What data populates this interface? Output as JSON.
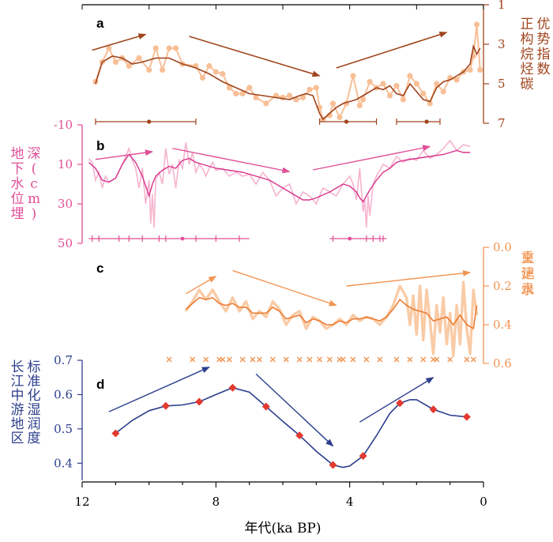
{
  "figure": {
    "xlabel": "年代(ka BP)",
    "x_ticks": [
      12,
      8,
      4,
      0
    ],
    "x_tick_labels": [
      "12",
      "8",
      "4",
      "0"
    ],
    "x_range": [
      12,
      0
    ]
  },
  "chart_data": [
    {
      "panel": "a",
      "type": "line",
      "ylabel": "正构烷烃碳优势指数",
      "ylim": [
        1,
        7
      ],
      "y_inverted": true,
      "y_axis_side": "right",
      "y_ticks": [
        1,
        3,
        5,
        7
      ],
      "color_raw": "#f8bf96",
      "color_smooth": "#a0441c",
      "series": [
        {
          "role": "raw",
          "x": [
            11.6,
            11.4,
            11.2,
            11.0,
            10.8,
            10.6,
            10.3,
            10.0,
            9.8,
            9.6,
            9.4,
            9.2,
            9.0,
            8.6,
            8.4,
            8.2,
            8.0,
            7.8,
            7.6,
            7.4,
            7.2,
            7.0,
            6.8,
            6.5,
            6.2,
            6.0,
            5.8,
            5.6,
            5.4,
            5.2,
            5.0,
            4.9,
            4.8,
            4.6,
            4.5,
            4.3,
            4.1,
            3.9,
            3.7,
            3.6,
            3.4,
            3.2,
            3.0,
            2.8,
            2.6,
            2.4,
            2.2,
            2.0,
            1.8,
            1.6,
            1.4,
            1.2,
            1.0,
            0.8,
            0.6,
            0.4,
            0.3,
            0.2,
            0.1
          ],
          "y": [
            4.9,
            3.9,
            3.2,
            3.9,
            3.7,
            4.1,
            3.7,
            4.3,
            3.2,
            4.3,
            3.2,
            3.2,
            4.0,
            4.1,
            4.7,
            4.1,
            4.4,
            4.5,
            5.2,
            5.5,
            5.5,
            5.2,
            5.7,
            6.0,
            5.6,
            5.7,
            5.6,
            5.8,
            5.7,
            5.3,
            5.2,
            6.2,
            6.8,
            6.6,
            6.0,
            6.7,
            6.0,
            4.6,
            6.1,
            5.8,
            4.9,
            5.2,
            5.0,
            5.6,
            5.1,
            5.8,
            4.6,
            5.0,
            5.5,
            6.0,
            5.0,
            5.4,
            4.7,
            4.8,
            4.4,
            4.3,
            3.6,
            2.0,
            4.3
          ]
        },
        {
          "role": "smoothed",
          "x": [
            11.6,
            11.4,
            11.1,
            10.8,
            10.5,
            10.2,
            9.8,
            9.4,
            9.0,
            8.6,
            8.2,
            7.8,
            7.4,
            7.0,
            6.6,
            6.2,
            5.8,
            5.5,
            5.3,
            5.1,
            4.9,
            4.8,
            4.6,
            4.4,
            4.2,
            4.0,
            3.8,
            3.6,
            3.4,
            3.2,
            3.0,
            2.8,
            2.6,
            2.4,
            2.2,
            2.0,
            1.8,
            1.6,
            1.4,
            1.2,
            1.0,
            0.8,
            0.6,
            0.4,
            0.3,
            0.2,
            0.1
          ],
          "y": [
            5.0,
            3.9,
            3.6,
            3.7,
            4.0,
            3.9,
            3.7,
            3.7,
            4.0,
            4.2,
            4.5,
            4.9,
            5.2,
            5.5,
            5.6,
            5.7,
            5.8,
            5.6,
            5.5,
            5.6,
            6.5,
            6.8,
            6.5,
            6.2,
            6.0,
            5.9,
            5.8,
            5.6,
            5.4,
            5.2,
            5.3,
            5.1,
            5.5,
            5.6,
            5.0,
            5.4,
            5.8,
            5.9,
            5.2,
            4.9,
            4.8,
            4.6,
            4.4,
            4.0,
            3.1,
            3.5,
            3.2
          ]
        }
      ],
      "trend_arrows": [
        {
          "from": [
            11.7,
            3.3
          ],
          "to": [
            10.1,
            2.5
          ]
        },
        {
          "from": [
            8.8,
            2.6
          ],
          "to": [
            4.9,
            4.6
          ]
        },
        {
          "from": [
            4.4,
            4.2
          ],
          "to": [
            1.1,
            2.4
          ]
        }
      ],
      "age_ranges": [
        {
          "start": 11.6,
          "end": 8.6,
          "mark": 10.0
        },
        {
          "start": 4.9,
          "end": 3.2,
          "mark": 4.1
        },
        {
          "start": 2.6,
          "end": 1.3,
          "mark": 1.7
        }
      ]
    },
    {
      "panel": "b",
      "type": "line",
      "ylabel": "地下水位埋深(cm)",
      "ylim": [
        -10,
        50
      ],
      "y_axis_side": "left",
      "y_ticks": [
        -10,
        10,
        30,
        50
      ],
      "color_raw": "#f6b3ce",
      "color_smooth": "#d6338a",
      "series": [
        {
          "role": "raw",
          "x": [
            11.8,
            11.7,
            11.6,
            11.5,
            11.4,
            11.3,
            11.2,
            11.0,
            10.8,
            10.6,
            10.5,
            10.4,
            10.3,
            10.2,
            10.1,
            10.0,
            9.95,
            9.9,
            9.85,
            9.8,
            9.7,
            9.6,
            9.5,
            9.4,
            9.3,
            9.2,
            9.1,
            9.0,
            8.9,
            8.8,
            8.7,
            8.6,
            8.5,
            8.4,
            8.3,
            8.2,
            8.1,
            8.0,
            7.8,
            7.6,
            7.4,
            7.2,
            7.0,
            6.8,
            6.6,
            6.4,
            6.2,
            6.0,
            5.8,
            5.6,
            5.4,
            5.2,
            5.0,
            4.8,
            4.6,
            4.4,
            4.2,
            4.0,
            3.9,
            3.8,
            3.7,
            3.6,
            3.55,
            3.5,
            3.45,
            3.4,
            3.3,
            3.2,
            3.0,
            2.8,
            2.6,
            2.4,
            2.2,
            2.0,
            1.8,
            1.6,
            1.4,
            1.2,
            1.0,
            0.8,
            0.6,
            0.4
          ],
          "y": [
            7,
            9,
            18,
            14,
            22,
            16,
            19,
            17,
            10,
            2,
            8,
            12,
            22,
            12,
            30,
            18,
            40,
            25,
            42,
            18,
            14,
            20,
            2,
            15,
            10,
            22,
            8,
            12,
            -1,
            10,
            4,
            14,
            10,
            12,
            16,
            12,
            9,
            13,
            12,
            16,
            14,
            16,
            15,
            20,
            14,
            18,
            26,
            22,
            20,
            30,
            24,
            26,
            30,
            22,
            24,
            26,
            20,
            16,
            20,
            28,
            12,
            34,
            28,
            42,
            26,
            36,
            20,
            16,
            10,
            12,
            6,
            9,
            7,
            8,
            3,
            7,
            5,
            2,
            -2,
            3,
            0,
            1
          ]
        },
        {
          "role": "smoothed",
          "x": [
            11.8,
            11.6,
            11.4,
            11.2,
            11.0,
            10.8,
            10.6,
            10.5,
            10.4,
            10.2,
            10.0,
            9.9,
            9.8,
            9.6,
            9.4,
            9.2,
            9.0,
            8.8,
            8.6,
            8.4,
            8.2,
            8.0,
            7.6,
            7.2,
            6.8,
            6.4,
            6.0,
            5.6,
            5.4,
            5.2,
            5.0,
            4.6,
            4.2,
            4.0,
            3.8,
            3.7,
            3.6,
            3.5,
            3.4,
            3.2,
            3.0,
            2.8,
            2.6,
            2.4,
            2.0,
            1.6,
            1.2,
            0.8,
            0.6,
            0.4
          ],
          "y": [
            9,
            12,
            18,
            19,
            17,
            10,
            5,
            7,
            9,
            16,
            26,
            20,
            16,
            13,
            11,
            12,
            8,
            7,
            9,
            10,
            11,
            12,
            13,
            14,
            16,
            18,
            22,
            26,
            28,
            28,
            27,
            24,
            20,
            21,
            24,
            27,
            29,
            26,
            23,
            18,
            14,
            12,
            9,
            8,
            7,
            6,
            5,
            3,
            4,
            4
          ]
        }
      ],
      "trend_arrows": [
        {
          "from": [
            11.6,
            7.5
          ],
          "to": [
            9.9,
            3.6
          ]
        },
        {
          "from": [
            9.3,
            1.9
          ],
          "to": [
            5.8,
            13.7
          ]
        },
        {
          "from": [
            5.1,
            12.8
          ],
          "to": [
            1.6,
            1.0
          ]
        }
      ],
      "age_ranges": [
        {
          "start": 11.8,
          "end": 7.0,
          "mark": 9.0,
          "ticks": [
            11.7,
            11.5,
            10.9,
            10.6,
            10.2,
            9.7,
            9.5,
            8.6,
            8.0,
            7.3
          ]
        },
        {
          "start": 4.6,
          "end": 2.9,
          "mark": 4.0,
          "ticks": [
            4.5,
            3.5,
            3.3,
            3.1,
            3.0
          ]
        }
      ]
    },
    {
      "panel": "c",
      "type": "line",
      "ylabel": "重建水文记录",
      "ylim": [
        0.0,
        0.6
      ],
      "y_axis_side": "right",
      "y_ticks": [
        0.0,
        0.2,
        0.4,
        0.6
      ],
      "color_raw": "#f9cba6",
      "color_smooth": "#eb7d35",
      "series": [
        {
          "role": "raw",
          "x": [
            8.9,
            8.7,
            8.5,
            8.3,
            8.1,
            7.9,
            7.7,
            7.5,
            7.3,
            7.1,
            6.9,
            6.7,
            6.5,
            6.3,
            6.1,
            5.9,
            5.7,
            5.5,
            5.3,
            5.1,
            4.9,
            4.7,
            4.5,
            4.3,
            4.1,
            3.9,
            3.7,
            3.5,
            3.3,
            3.1,
            2.9,
            2.7,
            2.5,
            2.3,
            2.2,
            2.1,
            2.0,
            1.9,
            1.8,
            1.7,
            1.6,
            1.5,
            1.4,
            1.3,
            1.2,
            1.1,
            1.0,
            0.9,
            0.8,
            0.7,
            0.6,
            0.5,
            0.4,
            0.3,
            0.2
          ],
          "y": [
            0.33,
            0.28,
            0.22,
            0.27,
            0.22,
            0.28,
            0.33,
            0.26,
            0.33,
            0.28,
            0.37,
            0.33,
            0.36,
            0.28,
            0.32,
            0.4,
            0.35,
            0.33,
            0.42,
            0.36,
            0.38,
            0.42,
            0.4,
            0.37,
            0.4,
            0.35,
            0.38,
            0.36,
            0.37,
            0.4,
            0.36,
            0.3,
            0.2,
            0.26,
            0.4,
            0.25,
            0.45,
            0.2,
            0.48,
            0.22,
            0.38,
            0.55,
            0.3,
            0.44,
            0.26,
            0.5,
            0.34,
            0.56,
            0.3,
            0.5,
            0.18,
            0.42,
            0.55,
            0.22,
            0.35
          ]
        },
        {
          "role": "smoothed",
          "x": [
            8.9,
            8.7,
            8.5,
            8.3,
            8.1,
            7.9,
            7.7,
            7.5,
            7.3,
            7.1,
            6.9,
            6.7,
            6.5,
            6.3,
            6.1,
            5.9,
            5.7,
            5.5,
            5.3,
            5.1,
            4.9,
            4.7,
            4.5,
            4.3,
            4.1,
            3.9,
            3.7,
            3.5,
            3.3,
            3.1,
            2.9,
            2.7,
            2.5,
            2.3,
            2.1,
            1.9,
            1.7,
            1.5,
            1.3,
            1.1,
            0.9,
            0.7,
            0.5,
            0.3,
            0.2
          ],
          "y": [
            0.32,
            0.29,
            0.26,
            0.27,
            0.26,
            0.29,
            0.3,
            0.29,
            0.31,
            0.31,
            0.34,
            0.34,
            0.34,
            0.31,
            0.33,
            0.37,
            0.36,
            0.35,
            0.39,
            0.37,
            0.38,
            0.4,
            0.4,
            0.38,
            0.39,
            0.37,
            0.37,
            0.36,
            0.37,
            0.38,
            0.36,
            0.32,
            0.27,
            0.3,
            0.32,
            0.33,
            0.34,
            0.38,
            0.37,
            0.36,
            0.4,
            0.35,
            0.4,
            0.42,
            0.3
          ]
        }
      ],
      "trend_arrows": [
        {
          "from": [
            8.9,
            0.24
          ],
          "to": [
            8.0,
            0.15
          ]
        },
        {
          "from": [
            7.5,
            0.12
          ],
          "to": [
            4.4,
            0.3
          ]
        },
        {
          "from": [
            4.1,
            0.2
          ],
          "to": [
            0.4,
            0.13
          ]
        }
      ],
      "age_markers": [
        9.4,
        8.7,
        8.3,
        7.9,
        7.8,
        7.6,
        7.2,
        6.9,
        6.7,
        6.3,
        5.9,
        5.5,
        5.2,
        4.9,
        4.6,
        4.3,
        4.2,
        3.9,
        3.5,
        3.1,
        2.6,
        2.2,
        1.8,
        1.5,
        1.4,
        1.0,
        0.5,
        0.3
      ]
    },
    {
      "panel": "d",
      "type": "line",
      "ylabel": "长江中游地区标准化湿润度",
      "ylim": [
        0.35,
        0.7
      ],
      "y_axis_side": "left",
      "y_ticks": [
        0.4,
        0.5,
        0.6,
        0.7
      ],
      "color_line": "#2c3e8c",
      "color_points": "#e23a2e",
      "series": [
        {
          "role": "points",
          "x": [
            11.0,
            9.5,
            8.5,
            7.5,
            6.5,
            5.5,
            4.5,
            3.6,
            2.5,
            1.5,
            0.5
          ],
          "y": [
            0.487,
            0.567,
            0.579,
            0.62,
            0.565,
            0.481,
            0.395,
            0.421,
            0.575,
            0.557,
            0.535
          ]
        },
        {
          "role": "smoothed",
          "x": [
            11.0,
            10.5,
            10.0,
            9.5,
            9.0,
            8.5,
            8.0,
            7.5,
            7.0,
            6.5,
            6.0,
            5.5,
            5.0,
            4.5,
            4.2,
            4.0,
            3.6,
            3.2,
            2.8,
            2.5,
            2.2,
            2.0,
            1.5,
            1.0,
            0.5
          ],
          "y": [
            0.487,
            0.525,
            0.553,
            0.567,
            0.57,
            0.579,
            0.6,
            0.62,
            0.607,
            0.565,
            0.522,
            0.481,
            0.435,
            0.395,
            0.388,
            0.392,
            0.421,
            0.48,
            0.545,
            0.575,
            0.585,
            0.585,
            0.557,
            0.54,
            0.535
          ]
        }
      ],
      "trend_arrows": [
        {
          "from": [
            11.2,
            0.55
          ],
          "to": [
            8.2,
            0.68
          ]
        },
        {
          "from": [
            6.8,
            0.66
          ],
          "to": [
            4.5,
            0.45
          ]
        },
        {
          "from": [
            3.7,
            0.52
          ],
          "to": [
            1.5,
            0.65
          ]
        }
      ]
    }
  ]
}
